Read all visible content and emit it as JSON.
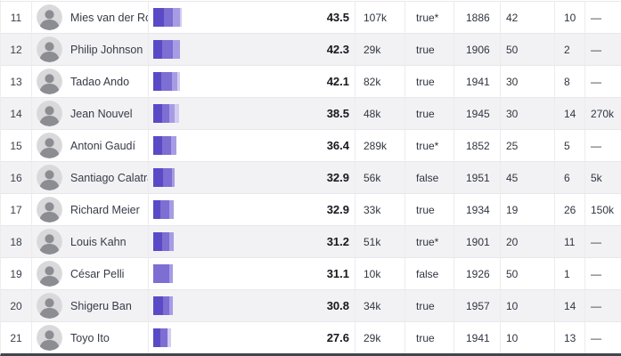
{
  "colors": {
    "bar_shades": [
      "#5a4ac5",
      "#7d6ed3",
      "#a79ce4",
      "#d2ccf1"
    ],
    "stripe": "#f2f2f5",
    "row_border": "#e8e8ec",
    "bottom_border": "#41454c",
    "score_text": "#15181d",
    "body_text": "#2f3640"
  },
  "rows": [
    {
      "rank": "11",
      "name": "Mies van der Rohe",
      "score": "43.5",
      "cells": [
        "107k",
        "true*",
        "1886",
        "42",
        "10",
        "—"
      ],
      "bar": [
        [
          12,
          0
        ],
        [
          10,
          1
        ],
        [
          8,
          2
        ],
        [
          2,
          3
        ]
      ]
    },
    {
      "rank": "12",
      "name": "Philip Johnson",
      "score": "42.3",
      "cells": [
        "29k",
        "true",
        "1906",
        "50",
        "2",
        "—"
      ],
      "bar": [
        [
          10,
          0
        ],
        [
          12,
          1
        ],
        [
          8,
          2
        ]
      ]
    },
    {
      "rank": "13",
      "name": "Tadao Ando",
      "score": "42.1",
      "cells": [
        "82k",
        "true",
        "1941",
        "30",
        "8",
        "—"
      ],
      "bar": [
        [
          9,
          0
        ],
        [
          12,
          1
        ],
        [
          6,
          2
        ],
        [
          3,
          3
        ]
      ]
    },
    {
      "rank": "14",
      "name": "Jean Nouvel",
      "score": "38.5",
      "cells": [
        "48k",
        "true",
        "1945",
        "30",
        "14",
        "270k"
      ],
      "bar": [
        [
          10,
          0
        ],
        [
          8,
          1
        ],
        [
          6,
          2
        ],
        [
          5,
          3
        ]
      ]
    },
    {
      "rank": "15",
      "name": "Antoni Gaudí",
      "score": "36.4",
      "cells": [
        "289k",
        "true*",
        "1852",
        "25",
        "5",
        "—"
      ],
      "bar": [
        [
          10,
          0
        ],
        [
          10,
          1
        ],
        [
          6,
          2
        ]
      ]
    },
    {
      "rank": "16",
      "name": "Santiago Calatrava",
      "score": "32.9",
      "cells": [
        "56k",
        "false",
        "1951",
        "45",
        "6",
        "5k"
      ],
      "bar": [
        [
          11,
          0
        ],
        [
          10,
          1
        ],
        [
          3,
          2
        ]
      ]
    },
    {
      "rank": "17",
      "name": "Richard Meier",
      "score": "32.9",
      "cells": [
        "33k",
        "true",
        "1934",
        "19",
        "26",
        "150k"
      ],
      "bar": [
        [
          8,
          0
        ],
        [
          10,
          1
        ],
        [
          5,
          2
        ]
      ]
    },
    {
      "rank": "18",
      "name": "Louis Kahn",
      "score": "31.2",
      "cells": [
        "51k",
        "true*",
        "1901",
        "20",
        "11",
        "—"
      ],
      "bar": [
        [
          10,
          0
        ],
        [
          8,
          1
        ],
        [
          5,
          2
        ]
      ]
    },
    {
      "rank": "19",
      "name": "César Pelli",
      "score": "31.1",
      "cells": [
        "10k",
        "false",
        "1926",
        "50",
        "1",
        "—"
      ],
      "bar": [
        [
          18,
          1
        ],
        [
          4,
          2
        ]
      ]
    },
    {
      "rank": "20",
      "name": "Shigeru Ban",
      "score": "30.8",
      "cells": [
        "34k",
        "true",
        "1957",
        "10",
        "14",
        "—"
      ],
      "bar": [
        [
          11,
          0
        ],
        [
          7,
          1
        ],
        [
          4,
          2
        ]
      ]
    },
    {
      "rank": "21",
      "name": "Toyo Ito",
      "score": "27.6",
      "cells": [
        "29k",
        "true",
        "1941",
        "10",
        "13",
        "—"
      ],
      "bar": [
        [
          8,
          0
        ],
        [
          8,
          1
        ],
        [
          4,
          3
        ]
      ]
    }
  ],
  "chart_data": {
    "type": "bar",
    "orientation": "horizontal",
    "categories": [
      "Mies van der Rohe",
      "Philip Johnson",
      "Tadao Ando",
      "Jean Nouvel",
      "Antoni Gaudí",
      "Santiago Calatrava",
      "Richard Meier",
      "Louis Kahn",
      "César Pelli",
      "Shigeru Ban",
      "Toyo Ito"
    ],
    "values": [
      43.5,
      42.3,
      42.1,
      38.5,
      36.4,
      32.9,
      32.9,
      31.2,
      31.1,
      30.8,
      27.6
    ],
    "title": "",
    "xlabel": "",
    "ylabel": "",
    "legend": false,
    "note_layout": "inline stacked mini-bars inside table rows, width proportional to score"
  }
}
